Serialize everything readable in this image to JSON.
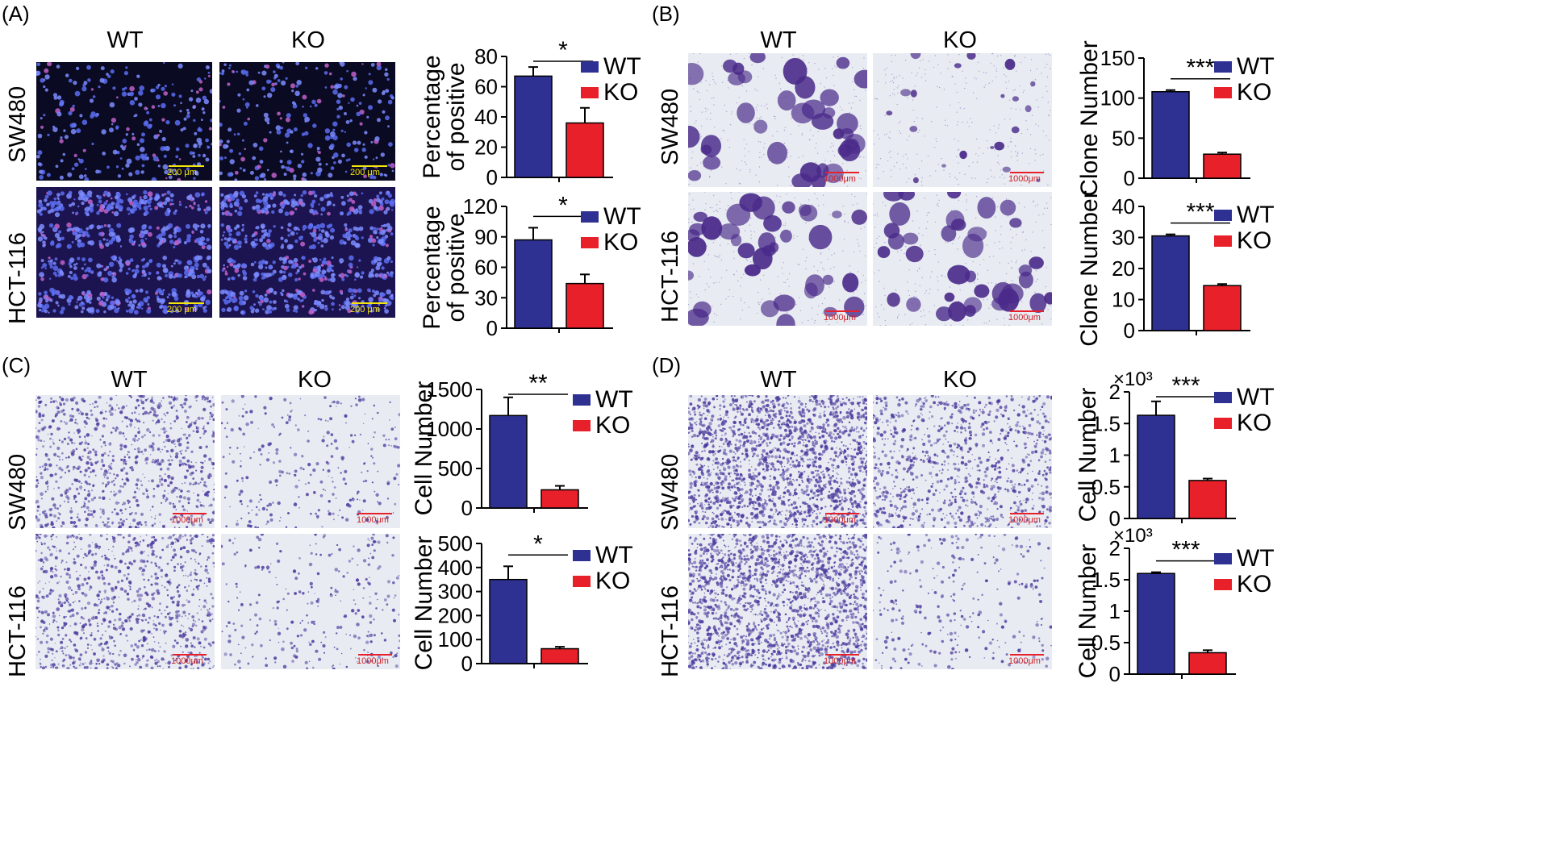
{
  "colors": {
    "wt": "#2e3192",
    "ko": "#e8202a",
    "fluor_bg": "#0a0a22",
    "fluor_bg2": "#1c1450",
    "stain_bg": "#e8ecf2",
    "stain_cells": "#5a3a9a",
    "scale_yellow": "#f5e60a",
    "scale_red": "#e8202a"
  },
  "panels": [
    {
      "label": "(A)",
      "col_labels": [
        "WT",
        "KO"
      ],
      "row_labels": [
        "SW480",
        "HCT-116"
      ],
      "image_type": "fluorescence",
      "scale_bar_text": "200 μm"
    },
    {
      "label": "(B)",
      "col_labels": [
        "WT",
        "KO"
      ],
      "row_labels": [
        "SW480",
        "HCT-116"
      ],
      "image_type": "colony-stain",
      "scale_bar_text": "1000μm"
    },
    {
      "label": "(C)",
      "col_labels": [
        "WT",
        "KO"
      ],
      "row_labels": [
        "SW480",
        "HCT-116"
      ],
      "image_type": "transwell-stain",
      "scale_bar_text": "1000μm"
    },
    {
      "label": "(D)",
      "col_labels": [
        "WT",
        "KO"
      ],
      "row_labels": [
        "SW480",
        "HCT-116"
      ],
      "image_type": "transwell-stain",
      "scale_bar_text": "1000μm"
    }
  ],
  "chart_data": [
    {
      "id": "A1",
      "type": "bar",
      "categories": [
        "WT",
        "KO"
      ],
      "values": [
        67,
        36
      ],
      "errors": [
        6,
        10
      ],
      "ylabel_lines": [
        "Percentage",
        "of positive"
      ],
      "ylim": [
        0,
        80
      ],
      "yticks": [
        "0",
        "20",
        "40",
        "60",
        "80"
      ],
      "tick_values": [
        0,
        20,
        40,
        60,
        80
      ],
      "significance": "*",
      "legend": [
        "WT",
        "KO"
      ],
      "exponent": ""
    },
    {
      "id": "A2",
      "type": "bar",
      "categories": [
        "WT",
        "KO"
      ],
      "values": [
        87,
        44
      ],
      "errors": [
        12,
        9
      ],
      "ylabel_lines": [
        "Percentage",
        "of positive"
      ],
      "ylim": [
        0,
        120
      ],
      "yticks": [
        "0",
        "30",
        "60",
        "90",
        "120"
      ],
      "tick_values": [
        0,
        30,
        60,
        90,
        120
      ],
      "significance": "*",
      "legend": [
        "WT",
        "KO"
      ],
      "exponent": ""
    },
    {
      "id": "B1",
      "type": "bar",
      "categories": [
        "WT",
        "KO"
      ],
      "values": [
        108,
        30
      ],
      "errors": [
        2,
        2
      ],
      "ylabel_lines": [
        "Clone Number"
      ],
      "ylim": [
        0,
        150
      ],
      "yticks": [
        "0",
        "50",
        "100",
        "150"
      ],
      "tick_values": [
        0,
        50,
        100,
        150
      ],
      "significance": "***",
      "legend": [
        "WT",
        "KO"
      ],
      "exponent": ""
    },
    {
      "id": "B2",
      "type": "bar",
      "categories": [
        "WT",
        "KO"
      ],
      "values": [
        30.5,
        14.5
      ],
      "errors": [
        0.5,
        0.5
      ],
      "ylabel_lines": [
        "Clone Number"
      ],
      "ylim": [
        0,
        40
      ],
      "yticks": [
        "0",
        "10",
        "20",
        "30",
        "40"
      ],
      "tick_values": [
        0,
        10,
        20,
        30,
        40
      ],
      "significance": "***",
      "legend": [
        "WT",
        "KO"
      ],
      "exponent": ""
    },
    {
      "id": "C1",
      "type": "bar",
      "categories": [
        "WT",
        "KO"
      ],
      "values": [
        1170,
        230
      ],
      "errors": [
        230,
        50
      ],
      "ylabel_lines": [
        "Cell Number"
      ],
      "ylim": [
        0,
        1500
      ],
      "yticks": [
        "0",
        "500",
        "1000",
        "1500"
      ],
      "tick_values": [
        0,
        500,
        1000,
        1500
      ],
      "significance": "**",
      "legend": [
        "WT",
        "KO"
      ],
      "exponent": ""
    },
    {
      "id": "C2",
      "type": "bar",
      "categories": [
        "WT",
        "KO"
      ],
      "values": [
        350,
        62
      ],
      "errors": [
        55,
        8
      ],
      "ylabel_lines": [
        "Cell Number"
      ],
      "ylim": [
        0,
        500
      ],
      "yticks": [
        "0",
        "100",
        "200",
        "300",
        "400",
        "500"
      ],
      "tick_values": [
        0,
        100,
        200,
        300,
        400,
        500
      ],
      "significance": "*",
      "legend": [
        "WT",
        "KO"
      ],
      "exponent": ""
    },
    {
      "id": "D1",
      "type": "bar",
      "categories": [
        "WT",
        "KO"
      ],
      "values": [
        1.63,
        0.6
      ],
      "errors": [
        0.22,
        0.03
      ],
      "ylabel_lines": [
        "Cell Number"
      ],
      "ylim": [
        0,
        2
      ],
      "yticks": [
        "0",
        "0.5",
        "1",
        "1.5",
        "2"
      ],
      "tick_values": [
        0,
        0.5,
        1,
        1.5,
        2
      ],
      "significance": "***",
      "legend": [
        "WT",
        "KO"
      ],
      "exponent": "×10³"
    },
    {
      "id": "D2",
      "type": "bar",
      "categories": [
        "WT",
        "KO"
      ],
      "values": [
        1.6,
        0.34
      ],
      "errors": [
        0.02,
        0.04
      ],
      "ylabel_lines": [
        "Cell Number"
      ],
      "ylim": [
        0,
        2
      ],
      "yticks": [
        "0",
        "0.5",
        "1",
        "1.5",
        "2"
      ],
      "tick_values": [
        0,
        0.5,
        1,
        1.5,
        2
      ],
      "significance": "***",
      "legend": [
        "WT",
        "KO"
      ],
      "exponent": "×10³"
    }
  ]
}
